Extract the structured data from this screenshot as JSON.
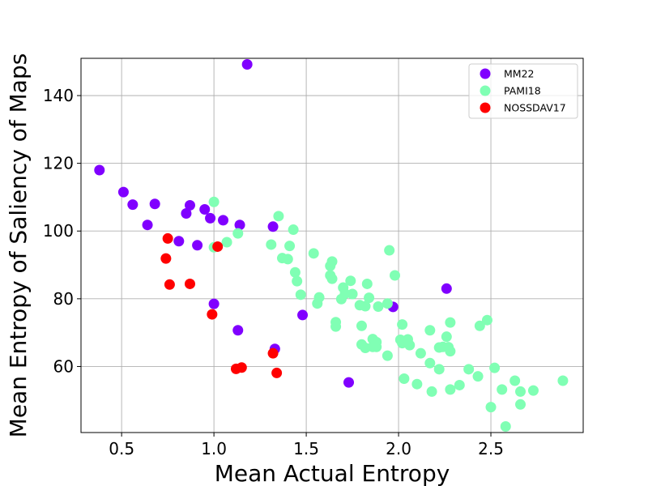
{
  "chart_data": {
    "type": "scatter",
    "xlabel": "Mean Actual Entropy",
    "ylabel": "Mean Entropy of Saliency of Maps",
    "xlim": [
      0.28,
      3.0
    ],
    "ylim": [
      40.5,
      151
    ],
    "x_ticks": [
      0.5,
      1.0,
      1.5,
      2.0,
      2.5
    ],
    "x_tick_labels": [
      "0.5",
      "1.0",
      "1.5",
      "2.0",
      "2.5"
    ],
    "y_ticks": [
      60,
      80,
      100,
      120,
      140
    ],
    "y_tick_labels": [
      "60",
      "80",
      "100",
      "120",
      "140"
    ],
    "grid": true,
    "legend_position": "top-right",
    "series": [
      {
        "name": "MM22",
        "color": "#8000ff",
        "points": [
          [
            0.38,
            118.0
          ],
          [
            0.51,
            111.5
          ],
          [
            0.56,
            107.8
          ],
          [
            0.64,
            101.8
          ],
          [
            0.68,
            108.0
          ],
          [
            0.81,
            97.0
          ],
          [
            0.85,
            105.2
          ],
          [
            0.87,
            107.6
          ],
          [
            0.91,
            95.8
          ],
          [
            0.95,
            106.4
          ],
          [
            0.98,
            103.8
          ],
          [
            1.0,
            78.5
          ],
          [
            1.05,
            103.2
          ],
          [
            1.13,
            70.7
          ],
          [
            1.14,
            101.8
          ],
          [
            1.18,
            149.2
          ],
          [
            1.32,
            101.3
          ],
          [
            1.33,
            65.2
          ],
          [
            1.48,
            75.2
          ],
          [
            1.73,
            55.3
          ],
          [
            1.97,
            77.6
          ],
          [
            2.26,
            83.0
          ]
        ]
      },
      {
        "name": "PAMI18",
        "color": "#80ffb4",
        "points": [
          [
            1.0,
            108.6
          ],
          [
            1.0,
            95.2
          ],
          [
            1.07,
            96.7
          ],
          [
            1.13,
            99.3
          ],
          [
            1.31,
            96.0
          ],
          [
            1.35,
            104.4
          ],
          [
            1.37,
            92.0
          ],
          [
            1.4,
            91.7
          ],
          [
            1.41,
            95.6
          ],
          [
            1.43,
            100.4
          ],
          [
            1.44,
            87.8
          ],
          [
            1.45,
            85.2
          ],
          [
            1.47,
            81.2
          ],
          [
            1.54,
            93.4
          ],
          [
            1.56,
            78.6
          ],
          [
            1.57,
            80.4
          ],
          [
            1.63,
            86.9
          ],
          [
            1.63,
            89.7
          ],
          [
            1.64,
            91.0
          ],
          [
            1.64,
            85.9
          ],
          [
            1.66,
            73.1
          ],
          [
            1.66,
            71.8
          ],
          [
            1.69,
            79.9
          ],
          [
            1.7,
            83.3
          ],
          [
            1.71,
            81.5
          ],
          [
            1.74,
            85.3
          ],
          [
            1.75,
            81.4
          ],
          [
            1.79,
            78.1
          ],
          [
            1.8,
            72.0
          ],
          [
            1.8,
            66.5
          ],
          [
            1.82,
            77.8
          ],
          [
            1.82,
            65.5
          ],
          [
            1.83,
            84.4
          ],
          [
            1.84,
            80.3
          ],
          [
            1.86,
            68.1
          ],
          [
            1.86,
            65.8
          ],
          [
            1.88,
            67.2
          ],
          [
            1.88,
            65.8
          ],
          [
            1.89,
            77.7
          ],
          [
            1.94,
            78.6
          ],
          [
            1.94,
            63.2
          ],
          [
            1.95,
            94.3
          ],
          [
            1.98,
            86.9
          ],
          [
            2.01,
            67.9
          ],
          [
            2.02,
            66.9
          ],
          [
            2.02,
            72.4
          ],
          [
            2.03,
            56.4
          ],
          [
            2.05,
            68.0
          ],
          [
            2.06,
            66.3
          ],
          [
            2.1,
            54.8
          ],
          [
            2.12,
            63.9
          ],
          [
            2.17,
            61.0
          ],
          [
            2.17,
            70.7
          ],
          [
            2.18,
            52.6
          ],
          [
            2.22,
            59.2
          ],
          [
            2.22,
            65.6
          ],
          [
            2.24,
            65.8
          ],
          [
            2.26,
            68.8
          ],
          [
            2.27,
            65.7
          ],
          [
            2.28,
            64.5
          ],
          [
            2.28,
            73.0
          ],
          [
            2.28,
            53.2
          ],
          [
            2.33,
            54.5
          ],
          [
            2.38,
            59.2
          ],
          [
            2.43,
            57.1
          ],
          [
            2.44,
            72.0
          ],
          [
            2.48,
            73.7
          ],
          [
            2.5,
            48.0
          ],
          [
            2.52,
            59.6
          ],
          [
            2.56,
            53.2
          ],
          [
            2.58,
            42.3
          ],
          [
            2.63,
            55.8
          ],
          [
            2.66,
            52.6
          ],
          [
            2.66,
            48.8
          ],
          [
            2.73,
            52.9
          ],
          [
            2.89,
            55.8
          ]
        ]
      },
      {
        "name": "NOSSDAV17",
        "color": "#ff0000",
        "points": [
          [
            0.74,
            91.9
          ],
          [
            0.75,
            97.8
          ],
          [
            0.76,
            84.2
          ],
          [
            0.87,
            84.4
          ],
          [
            0.99,
            75.4
          ],
          [
            1.02,
            95.4
          ],
          [
            1.12,
            59.3
          ],
          [
            1.15,
            59.7
          ],
          [
            1.32,
            63.9
          ],
          [
            1.34,
            58.1
          ]
        ]
      }
    ]
  }
}
